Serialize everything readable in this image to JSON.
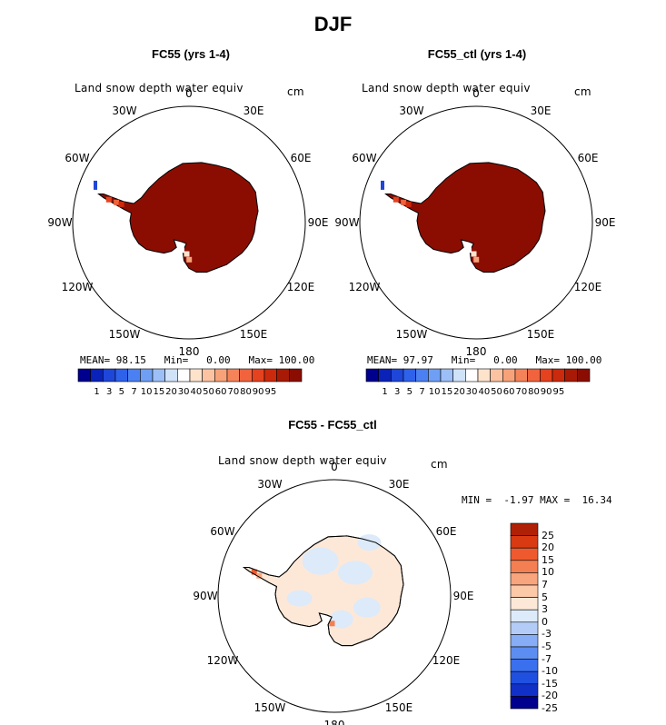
{
  "title": "DJF",
  "panels": [
    {
      "title": "FC55 (yrs 1-4)",
      "variable": "Land snow depth water equiv",
      "units": "cm",
      "stats": {
        "mean_label": "MEAN=",
        "mean": "98.15",
        "min_label": "Min=",
        "min": "0.00",
        "max_label": "Max=",
        "max": "100.00"
      }
    },
    {
      "title": "FC55_ctl (yrs 1-4)",
      "variable": "Land snow depth water equiv",
      "units": "cm",
      "stats": {
        "mean_label": "MEAN=",
        "mean": "97.97",
        "min_label": "Min=",
        "min": "0.00",
        "max_label": "Max=",
        "max": "100.00"
      }
    },
    {
      "title": "FC55 - FC55_ctl",
      "variable": "Land snow depth water equiv",
      "units": "cm",
      "stats": {
        "min_label": "MIN =",
        "min": "-1.97",
        "max_label": "MAX =",
        "max": "16.34"
      }
    }
  ],
  "lon_labels": [
    "0",
    "30E",
    "60E",
    "90E",
    "120E",
    "150E",
    "180",
    "150W",
    "120W",
    "90W",
    "60W",
    "30W"
  ],
  "colorbar_abs": {
    "colors": [
      "#00008f",
      "#0a22b8",
      "#1e46d8",
      "#2f62ea",
      "#4a80f2",
      "#6f9ff5",
      "#9dbff7",
      "#cfe2f8",
      "#ffffff",
      "#fde2cc",
      "#fbc3a2",
      "#f8a27a",
      "#f5835a",
      "#f0633c",
      "#e5421f",
      "#cb2a0c",
      "#a81a05",
      "#8b0d02"
    ],
    "ticks": [
      "1",
      "3",
      "5",
      "7",
      "10",
      "15",
      "20",
      "30",
      "40",
      "50",
      "60",
      "70",
      "80",
      "90",
      "95"
    ]
  },
  "colorbar_diff": {
    "colors": [
      "#00008f",
      "#1030c8",
      "#2050e0",
      "#3a70ee",
      "#5c8ef2",
      "#86adf5",
      "#b3ccf7",
      "#ddeaf9",
      "#fde8d8",
      "#fbc8a8",
      "#f8a47c",
      "#f47f52",
      "#ee5a2e",
      "#d93a12",
      "#b02006"
    ],
    "ticks": [
      "-25",
      "-20",
      "-15",
      "-10",
      "-7",
      "-5",
      "-3",
      "0",
      "3",
      "5",
      "7",
      "10",
      "15",
      "20",
      "25"
    ]
  },
  "chart_data": {
    "type": "heatmap",
    "title": "DJF",
    "projection": "south-polar-stereographic",
    "variable": "Land snow depth water equiv",
    "units": "cm",
    "maps": [
      {
        "name": "FC55 (yrs 1-4)",
        "mean": 98.15,
        "min": 0.0,
        "max": 100.0
      },
      {
        "name": "FC55_ctl (yrs 1-4)",
        "mean": 97.97,
        "min": 0.0,
        "max": 100.0
      },
      {
        "name": "FC55 - FC55_ctl",
        "min": -1.97,
        "max": 16.34
      }
    ],
    "abs_levels": [
      1,
      3,
      5,
      7,
      10,
      15,
      20,
      30,
      40,
      50,
      60,
      70,
      80,
      90,
      95
    ],
    "diff_levels": [
      -25,
      -20,
      -15,
      -10,
      -7,
      -5,
      -3,
      0,
      3,
      5,
      7,
      10,
      15,
      20,
      25
    ]
  }
}
